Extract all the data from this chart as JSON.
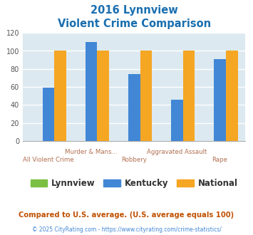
{
  "title_line1": "2016 Lynnview",
  "title_line2": "Violent Crime Comparison",
  "categories": [
    "All Violent Crime",
    "Murder & Mans...",
    "Robbery",
    "Aggravated Assault",
    "Rape"
  ],
  "lynnview_values": [
    0,
    0,
    0,
    0,
    0
  ],
  "kentucky_values": [
    59,
    110,
    74,
    46,
    91
  ],
  "national_values": [
    100,
    100,
    100,
    100,
    100
  ],
  "lynnview_color": "#7bc043",
  "kentucky_color": "#4287d6",
  "national_color": "#f5a623",
  "title_color": "#1a6faf",
  "bg_color": "#dce9f0",
  "ylim": [
    0,
    120
  ],
  "yticks": [
    0,
    20,
    40,
    60,
    80,
    100,
    120
  ],
  "xlabel_top": [
    "",
    "Murder & Mans...",
    "",
    "Aggravated Assault",
    ""
  ],
  "xlabel_bot": [
    "All Violent Crime",
    "",
    "Robbery",
    "",
    "Rape"
  ],
  "xlabel_color": "#b07050",
  "footer_text": "Compared to U.S. average. (U.S. average equals 100)",
  "credit_text": "© 2025 CityRating.com - https://www.cityrating.com/crime-statistics/",
  "footer_color": "#c05000",
  "credit_color": "#4287d6",
  "legend_text_color": "#333333"
}
